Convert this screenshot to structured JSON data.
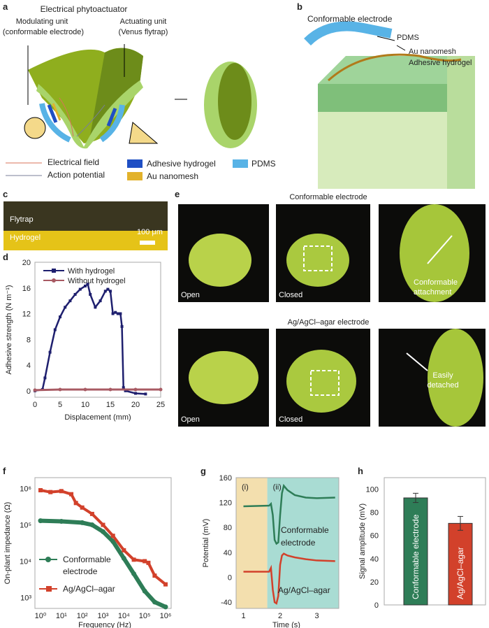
{
  "panels": {
    "a": "a",
    "b": "b",
    "c": "c",
    "d": "d",
    "e": "e",
    "f": "f",
    "g": "g",
    "h": "h"
  },
  "a": {
    "title": "Electrical phytoactuator",
    "modulating": "Modulating unit",
    "modulating_sub": "(conformable electrode)",
    "actuating": "Actuating unit",
    "actuating_sub": "(Venus flytrap)",
    "legend": {
      "field": "Electrical field",
      "ap": "Action potential",
      "hydrogel": "Adhesive hydrogel",
      "au": "Au nanomesh",
      "pdms": "PDMS"
    },
    "colors": {
      "field": "#d9735a",
      "ap": "#7a7f9a",
      "hydrogel": "#1f4fc4",
      "au": "#e2b22b",
      "pdms": "#58b3e6"
    }
  },
  "b": {
    "title": "Conformable electrode",
    "pdms": "PDMS",
    "au": "Au nanomesh",
    "hydrogel": "Adhesive hydrogel"
  },
  "c": {
    "flytrap": "Flytrap",
    "hydrogel": "Hydrogel",
    "scale": "100 μm"
  },
  "e": {
    "row1_title": "Conformable electrode",
    "row2_title": "Ag/AgCl–agar electrode",
    "open": "Open",
    "closed": "Closed",
    "attach": "Conformable attachment",
    "detached": "Easily detached"
  },
  "chart_data": [
    {
      "panel": "d",
      "type": "line",
      "xlabel": "Displacement (mm)",
      "ylabel": "Adhesive strength (N m⁻¹)",
      "xlim": [
        0,
        25
      ],
      "ylim": [
        -1,
        20
      ],
      "xticks": [
        0,
        5,
        10,
        15,
        20,
        25
      ],
      "yticks": [
        0,
        4,
        8,
        12,
        16,
        20
      ],
      "series": [
        {
          "name": "With hydrogel",
          "color": "#1e1f6e",
          "x": [
            0,
            1.5,
            2,
            3,
            4,
            5,
            6,
            7,
            8,
            9,
            10,
            10.5,
            11,
            12,
            13,
            14,
            14.5,
            15,
            15.5,
            16,
            16.5,
            17,
            17.3,
            17.6,
            18,
            20,
            22
          ],
          "y": [
            0,
            0.2,
            2,
            6,
            9.5,
            11.5,
            13,
            14,
            15,
            15.8,
            16.3,
            16.6,
            15,
            13,
            14,
            15.5,
            15.8,
            15.5,
            12,
            12.2,
            12,
            12,
            10,
            0.5,
            0,
            -0.4,
            -0.5
          ]
        },
        {
          "name": "Without hydrogel",
          "color": "#a85a63",
          "x": [
            0,
            5,
            10,
            15,
            20,
            25
          ],
          "y": [
            0.1,
            0.2,
            0.2,
            0.2,
            0.2,
            0.2
          ]
        }
      ]
    },
    {
      "panel": "f",
      "type": "scatter",
      "xlabel": "Frequency (Hz)",
      "ylabel": "On-plant impedance (Ω)",
      "xscale": "log",
      "yscale": "log",
      "xlim": [
        0.6,
        1600000.0
      ],
      "ylim": [
        500,
        2000000.0
      ],
      "xticks": [
        "10⁰",
        "10¹",
        "10²",
        "10³",
        "10⁴",
        "10⁵",
        "10⁶"
      ],
      "yticks": [
        "10³",
        "10⁴",
        "10⁵",
        "10⁶"
      ],
      "series": [
        {
          "name": "Conformable electrode",
          "color": "#2e7d57",
          "x": [
            1,
            10,
            100,
            300,
            1000,
            3000,
            10000,
            30000,
            100000,
            300000,
            1000000
          ],
          "y": [
            130000,
            125000,
            115000,
            100000,
            65000,
            35000,
            12000,
            4500,
            1500,
            750,
            550
          ]
        },
        {
          "name": "Ag/AgCl–agar",
          "color": "#d2412b",
          "x": [
            1,
            3,
            10,
            30,
            50,
            100,
            300,
            1000,
            3000,
            10000,
            30000,
            100000,
            150000,
            300000,
            1000000
          ],
          "y": [
            900000,
            800000,
            850000,
            700000,
            400000,
            300000,
            200000,
            100000,
            50000,
            20000,
            11000,
            10000,
            9000,
            4000,
            2300
          ]
        }
      ]
    },
    {
      "panel": "g",
      "type": "line",
      "xlabel": "Time (s)",
      "ylabel": "Potential (mV)",
      "xlim": [
        0.8,
        3.6
      ],
      "ylim": [
        -50,
        160
      ],
      "xticks": [
        1,
        2,
        3
      ],
      "yticks": [
        -40,
        0,
        40,
        80,
        120,
        160
      ],
      "regions": [
        {
          "label": "(i)",
          "from": 0.8,
          "to": 1.65,
          "color": "#f3dfae"
        },
        {
          "label": "(ii)",
          "from": 1.65,
          "to": 3.6,
          "color": "#a9dcd3"
        }
      ],
      "series": [
        {
          "name": "Conformable electrode",
          "label": "Conformable",
          "label2": "electrode",
          "color": "#2e7d57",
          "x": [
            1,
            1.7,
            1.75,
            1.8,
            1.85,
            1.9,
            1.95,
            2.0,
            2.05,
            2.1,
            2.2,
            2.4,
            2.7,
            3.0,
            3.5
          ],
          "y": [
            114,
            115,
            118,
            100,
            60,
            54,
            56,
            100,
            135,
            147,
            140,
            132,
            128,
            127,
            128
          ]
        },
        {
          "name": "Ag/AgCl–agar",
          "color": "#d2412b",
          "x": [
            1,
            1.7,
            1.75,
            1.8,
            1.85,
            1.9,
            1.95,
            2.0,
            2.05,
            2.1,
            2.2,
            2.4,
            2.7,
            3.0,
            3.5
          ],
          "y": [
            9,
            9,
            15,
            -20,
            -40,
            -42,
            -30,
            20,
            35,
            38,
            35,
            32,
            29,
            27,
            26
          ]
        }
      ]
    },
    {
      "panel": "h",
      "type": "bar",
      "ylabel": "Signal amplitude (mV)",
      "ylim": [
        0,
        110
      ],
      "yticks": [
        0,
        20,
        40,
        60,
        80,
        100
      ],
      "categories": [
        "Conformable electrode",
        "Ag/AgCl–agar"
      ],
      "values": [
        92.5,
        70.5
      ],
      "errors": [
        4,
        6
      ],
      "colors": [
        "#2e7d57",
        "#d2412b"
      ]
    }
  ]
}
